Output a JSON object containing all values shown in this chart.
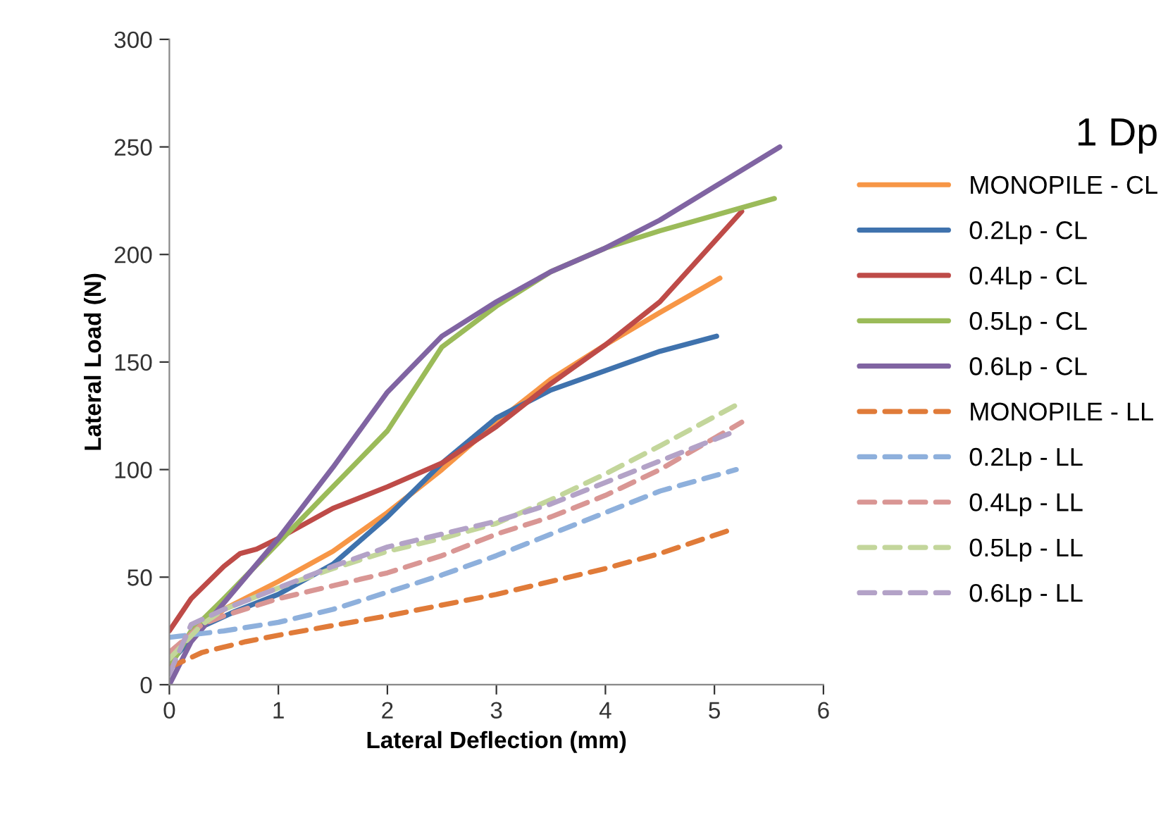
{
  "chart_data": {
    "type": "line",
    "xlabel": "Lateral Deflection (mm)",
    "ylabel": "Lateral Load (N)",
    "legend_title": "1 Dp",
    "legend": "right",
    "grid": false,
    "marker": "none",
    "xlim": [
      0,
      6
    ],
    "xticks": [
      0,
      1,
      2,
      3,
      4,
      5,
      6
    ],
    "ylim": [
      0,
      300
    ],
    "yticks": [
      0,
      50,
      100,
      150,
      200,
      250,
      300
    ],
    "series": [
      {
        "name": "MONOPILE - CL",
        "color": "#f79646",
        "line_style": "solid",
        "x": [
          0,
          0.5,
          1,
          1.5,
          2,
          2.5,
          3,
          3.5,
          4,
          4.5,
          5.05
        ],
        "values": [
          15,
          35,
          48,
          62,
          80,
          100,
          122,
          142,
          158,
          173,
          189
        ]
      },
      {
        "name": "0.2Lp - CL",
        "color": "#3f72ad",
        "line_style": "solid",
        "x": [
          0,
          0.3,
          0.6,
          1,
          1.5,
          2,
          2.5,
          3,
          3.5,
          4,
          4.5,
          5.02
        ],
        "values": [
          10,
          27,
          34,
          42,
          56,
          78,
          103,
          124,
          137,
          146,
          155,
          162
        ]
      },
      {
        "name": "0.4Lp - CL",
        "color": "#be4b48",
        "line_style": "solid",
        "x": [
          0,
          0.2,
          0.5,
          0.65,
          0.8,
          1,
          1.5,
          2,
          2.5,
          3,
          3.5,
          4,
          4.5,
          5.25
        ],
        "values": [
          25,
          40,
          55,
          61,
          63,
          68,
          82,
          92,
          103,
          120,
          140,
          158,
          178,
          220
        ]
      },
      {
        "name": "0.5Lp - CL",
        "color": "#9bbb59",
        "line_style": "solid",
        "x": [
          0,
          0.2,
          0.5,
          1,
          1.5,
          2,
          2.5,
          3,
          3.5,
          4,
          4.5,
          5.55
        ],
        "values": [
          8,
          25,
          40,
          66,
          92,
          118,
          157,
          176,
          192,
          203,
          211,
          226
        ]
      },
      {
        "name": "0.6Lp - CL",
        "color": "#8064a2",
        "line_style": "solid",
        "x": [
          0,
          0.2,
          0.5,
          1,
          1.5,
          2,
          2.5,
          3,
          3.5,
          4,
          4.5,
          5.6
        ],
        "values": [
          0,
          20,
          38,
          68,
          101,
          136,
          162,
          178,
          192,
          203,
          216,
          250
        ]
      },
      {
        "name": "MONOPILE - LL",
        "color": "#e07b39",
        "line_style": "dashed",
        "x": [
          0,
          0.3,
          0.7,
          1,
          2,
          3,
          4,
          4.5,
          5.15
        ],
        "values": [
          8,
          15,
          20,
          23,
          32,
          42,
          54,
          61,
          72
        ]
      },
      {
        "name": "0.2Lp - LL",
        "color": "#8eb0dc",
        "line_style": "dashed",
        "x": [
          0,
          0.5,
          1,
          1.5,
          2,
          2.5,
          3,
          3.5,
          4,
          4.5,
          5.2
        ],
        "values": [
          22,
          25,
          29,
          35,
          43,
          51,
          60,
          70,
          80,
          90,
          100
        ]
      },
      {
        "name": "0.4Lp - LL",
        "color": "#d99694",
        "line_style": "dashed",
        "x": [
          0,
          0.3,
          0.5,
          1,
          1.5,
          2,
          2.5,
          3,
          3.5,
          4,
          4.5,
          5.25
        ],
        "values": [
          15,
          28,
          32,
          40,
          46,
          52,
          60,
          70,
          78,
          88,
          100,
          122
        ]
      },
      {
        "name": "0.5Lp - LL",
        "color": "#c3d69b",
        "line_style": "dashed",
        "x": [
          0,
          0.3,
          0.5,
          1,
          1.5,
          2,
          2.5,
          3,
          3.5,
          4,
          4.5,
          5.2
        ],
        "values": [
          12,
          28,
          35,
          45,
          54,
          62,
          68,
          75,
          86,
          98,
          111,
          130
        ]
      },
      {
        "name": "0.6Lp - LL",
        "color": "#b3a2c7",
        "line_style": "dashed",
        "x": [
          0,
          0.2,
          0.5,
          1,
          1.5,
          2,
          2.5,
          3,
          3.5,
          4,
          4.5,
          5.15
        ],
        "values": [
          5,
          28,
          35,
          45,
          55,
          64,
          70,
          76,
          84,
          94,
          104,
          117
        ]
      }
    ]
  }
}
